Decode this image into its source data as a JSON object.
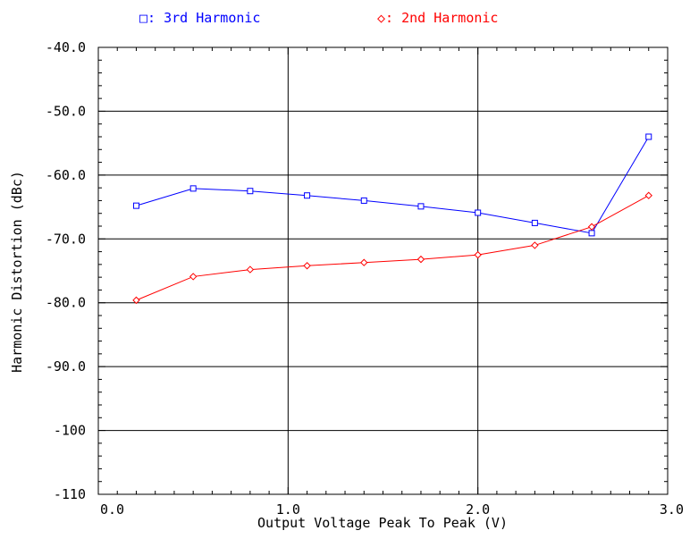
{
  "chart_data": {
    "type": "line",
    "title": "",
    "xlabel": "Output Voltage Peak To Peak (V)",
    "ylabel": "Harmonic Distortion (dBc)",
    "xlim": [
      0,
      3
    ],
    "ylim": [
      -110,
      -40
    ],
    "x_ticks": [
      {
        "value": 0,
        "label": "0.0"
      },
      {
        "value": 1,
        "label": "1.0"
      },
      {
        "value": 2,
        "label": "2.0"
      },
      {
        "value": 3,
        "label": "3.0"
      }
    ],
    "y_ticks": [
      {
        "value": -40,
        "label": "-40.0"
      },
      {
        "value": -50,
        "label": "-50.0"
      },
      {
        "value": -60,
        "label": "-60.0"
      },
      {
        "value": -70,
        "label": "-70.0"
      },
      {
        "value": -80,
        "label": "-80.0"
      },
      {
        "value": -90,
        "label": "-90.0"
      },
      {
        "value": -100,
        "label": "-100"
      },
      {
        "value": -110,
        "label": "-110"
      }
    ],
    "grid": true,
    "legend_position": "top",
    "series": [
      {
        "name": "3rd Harmonic",
        "legend_label": "□: 3rd Harmonic",
        "color": "#0000ff",
        "marker": "square",
        "x": [
          0.2,
          0.5,
          0.8,
          1.1,
          1.4,
          1.7,
          2.0,
          2.3,
          2.6,
          2.9
        ],
        "y": [
          -64.8,
          -62.1,
          -62.5,
          -63.2,
          -64.0,
          -64.9,
          -65.9,
          -67.5,
          -69.1,
          -54.0
        ]
      },
      {
        "name": "2nd Harmonic",
        "legend_label": "◇: 2nd Harmonic",
        "color": "#ff0000",
        "marker": "diamond",
        "x": [
          0.2,
          0.5,
          0.8,
          1.1,
          1.4,
          1.7,
          2.0,
          2.3,
          2.6,
          2.9
        ],
        "y": [
          -79.6,
          -75.9,
          -74.8,
          -74.2,
          -73.7,
          -73.2,
          -72.5,
          -71.0,
          -68.1,
          -63.2
        ]
      }
    ]
  }
}
